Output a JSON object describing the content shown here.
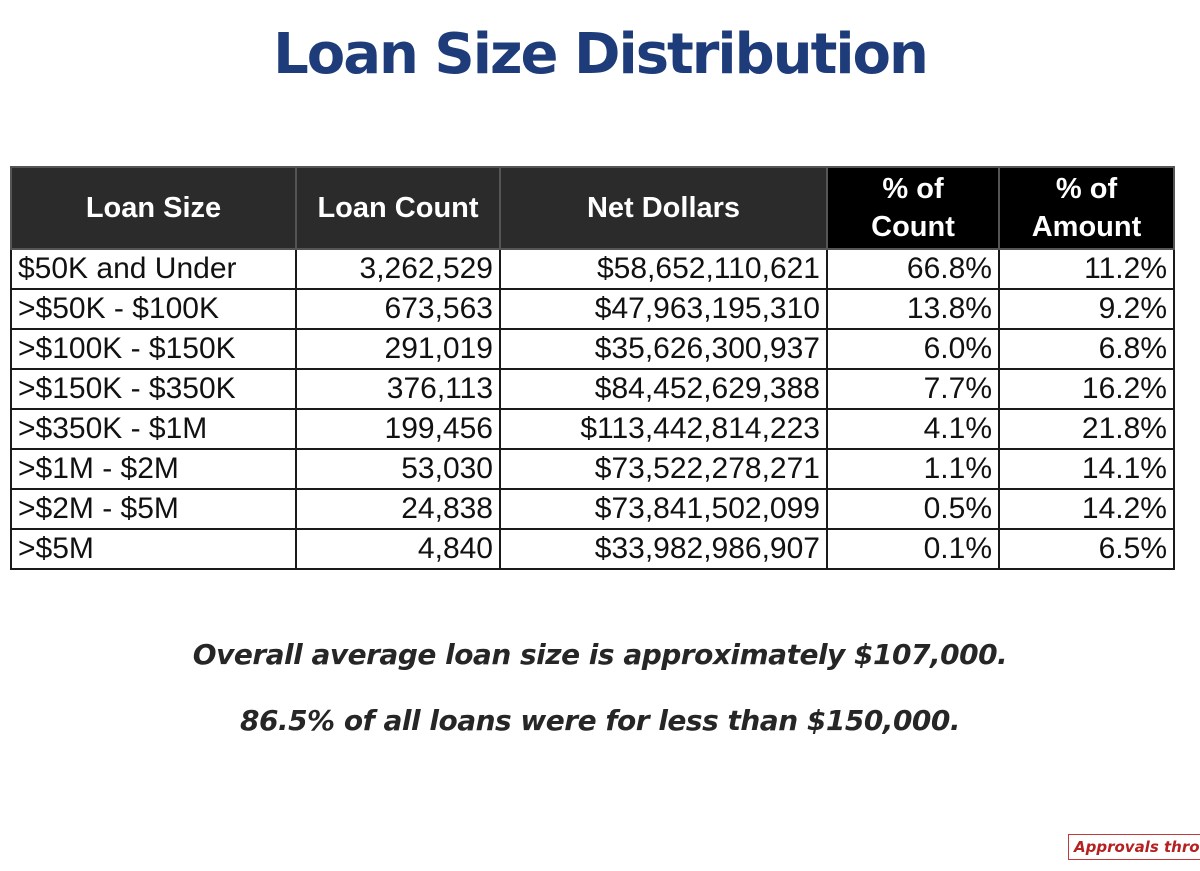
{
  "title": "Loan Size Distribution",
  "table": {
    "headers": {
      "loan_size": "Loan Size",
      "loan_count": "Loan Count",
      "net_dollars": "Net Dollars",
      "pct_count": [
        "% of",
        "Count"
      ],
      "pct_amount": [
        "% of",
        "Amount"
      ]
    },
    "rows": [
      {
        "loan_size": "$50K and Under",
        "loan_count": "3,262,529",
        "net_dollars": "$58,652,110,621",
        "pct_count": "66.8%",
        "pct_amount": "11.2%"
      },
      {
        "loan_size": ">$50K - $100K",
        "loan_count": "673,563",
        "net_dollars": "$47,963,195,310",
        "pct_count": "13.8%",
        "pct_amount": "9.2%"
      },
      {
        "loan_size": ">$100K - $150K",
        "loan_count": "291,019",
        "net_dollars": "$35,626,300,937",
        "pct_count": "6.0%",
        "pct_amount": "6.8%"
      },
      {
        "loan_size": ">$150K - $350K",
        "loan_count": "376,113",
        "net_dollars": "$84,452,629,388",
        "pct_count": "7.7%",
        "pct_amount": "16.2%"
      },
      {
        "loan_size": ">$350K - $1M",
        "loan_count": "199,456",
        "net_dollars": "$113,442,814,223",
        "pct_count": "4.1%",
        "pct_amount": "21.8%"
      },
      {
        "loan_size": ">$1M - $2M",
        "loan_count": "53,030",
        "net_dollars": "$73,522,278,271",
        "pct_count": "1.1%",
        "pct_amount": "14.1%"
      },
      {
        "loan_size": ">$2M - $5M",
        "loan_count": "24,838",
        "net_dollars": "$73,841,502,099",
        "pct_count": "0.5%",
        "pct_amount": "14.2%"
      },
      {
        "loan_size": ">$5M",
        "loan_count": "4,840",
        "net_dollars": "$33,982,986,907",
        "pct_count": "0.1%",
        "pct_amount": "6.5%"
      }
    ]
  },
  "notes": [
    "Overall average loan size is approximately $107,000.",
    "86.5% of all loans were for less than $150,000."
  ],
  "footnote": "Approvals throu",
  "colors": {
    "title": "#1f3c7a",
    "header_dark": "#2b2b2b",
    "header_black": "#000000",
    "footnote": "#b52121"
  }
}
